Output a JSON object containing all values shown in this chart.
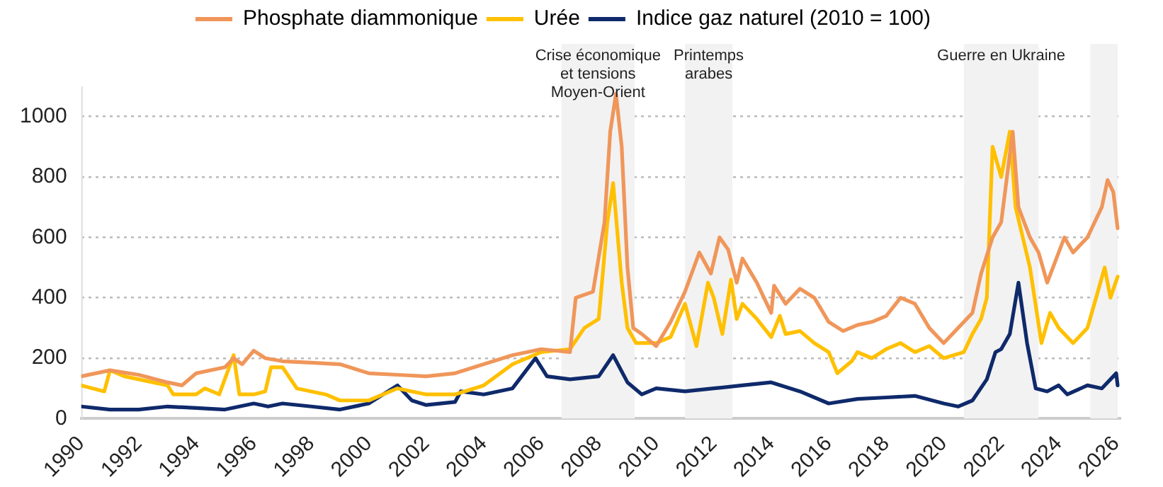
{
  "chart_data": {
    "type": "line",
    "legend": "top",
    "grid": "y",
    "marker": "none",
    "line_style": "solid",
    "xlim": [
      1990,
      2026.15
    ],
    "xticks": [
      1990,
      1992,
      1994,
      1996,
      1998,
      2000,
      2002,
      2004,
      2006,
      2008,
      2010,
      2012,
      2014,
      2016,
      2018,
      2020,
      2022,
      2024,
      2026
    ],
    "ylim": [
      0,
      1100
    ],
    "yticks": [
      0,
      200,
      400,
      600,
      800,
      1000
    ],
    "bands": [
      {
        "axis": "x",
        "from": 2006.7,
        "to": 2009.25,
        "label": "Crise économique  et tensions  Moyen-Orient",
        "color": "#f2f2f2"
      },
      {
        "axis": "x",
        "from": 2011.0,
        "to": 2012.65,
        "label": "Printemps arabes",
        "color": "#f2f2f2"
      },
      {
        "axis": "x",
        "from": 2020.7,
        "to": 2023.3,
        "label": "Guerre en Ukraine",
        "color": "#f2f2f2"
      },
      {
        "axis": "x",
        "from": 2025.1,
        "to": 2026.05,
        "label": null,
        "color": "#f2f2f2"
      }
    ],
    "series": [
      {
        "name": "Phosphate diammonique",
        "color": "#f0965a",
        "x": [
          1990,
          1991,
          1992,
          1993,
          1993.5,
          1994,
          1995,
          1995.3,
          1995.6,
          1996,
          1996.4,
          1997,
          1998,
          1999,
          2000,
          2001,
          2002,
          2003,
          2004,
          2005,
          2006,
          2007,
          2007.2,
          2007.8,
          2008.2,
          2008.4,
          2008.6,
          2008.8,
          2009,
          2009.2,
          2009.5,
          2010,
          2010.5,
          2011,
          2011.5,
          2011.9,
          2012.2,
          2012.5,
          2012.8,
          2013,
          2013.5,
          2014,
          2014.1,
          2014.5,
          2015,
          2015.5,
          2016,
          2016.5,
          2017,
          2017.5,
          2018,
          2018.5,
          2019,
          2019.5,
          2020,
          2020.5,
          2021,
          2021.3,
          2021.7,
          2022,
          2022.2,
          2022.4,
          2022.6,
          2023,
          2023.3,
          2023.6,
          2024,
          2024.2,
          2024.5,
          2025,
          2025.5,
          2025.7,
          2025.9,
          2026.05
        ],
        "values": [
          140,
          160,
          145,
          120,
          110,
          150,
          170,
          200,
          180,
          225,
          200,
          190,
          185,
          180,
          150,
          145,
          140,
          150,
          180,
          210,
          230,
          220,
          400,
          420,
          650,
          950,
          1075,
          900,
          500,
          300,
          280,
          240,
          320,
          420,
          550,
          480,
          600,
          560,
          450,
          530,
          450,
          350,
          440,
          380,
          430,
          400,
          320,
          290,
          310,
          320,
          340,
          400,
          380,
          300,
          250,
          300,
          350,
          480,
          600,
          650,
          800,
          950,
          700,
          600,
          550,
          450,
          550,
          600,
          550,
          600,
          700,
          790,
          750,
          630
        ]
      },
      {
        "name": "Urée",
        "color": "#ffc000",
        "x": [
          1990,
          1990.8,
          1991,
          1991.5,
          1992,
          1993,
          1993.2,
          1994,
          1994.3,
          1994.8,
          1995.3,
          1995.5,
          1996,
          1996.4,
          1996.6,
          1997,
          1997.5,
          1998,
          1998.5,
          1999,
          2000,
          2000.5,
          2001,
          2002,
          2003,
          2004,
          2005,
          2006,
          2007,
          2007.5,
          2008,
          2008.3,
          2008.5,
          2008.8,
          2009,
          2009.3,
          2010,
          2010.5,
          2011,
          2011.4,
          2011.8,
          2012,
          2012.3,
          2012.6,
          2012.8,
          2013,
          2013.5,
          2014,
          2014.3,
          2014.5,
          2015,
          2015.5,
          2016,
          2016.3,
          2016.8,
          2017,
          2017.5,
          2018,
          2018.5,
          2019,
          2019.5,
          2020,
          2020.7,
          2021,
          2021.3,
          2021.5,
          2021.7,
          2022,
          2022.3,
          2022.5,
          2023,
          2023.4,
          2023.7,
          2024,
          2024.5,
          2025,
          2025.3,
          2025.6,
          2025.8,
          2026.05
        ],
        "values": [
          110,
          90,
          160,
          140,
          130,
          110,
          80,
          80,
          100,
          80,
          210,
          80,
          80,
          90,
          170,
          170,
          100,
          90,
          80,
          60,
          60,
          80,
          100,
          80,
          80,
          110,
          180,
          220,
          230,
          300,
          330,
          650,
          780,
          450,
          300,
          250,
          250,
          270,
          380,
          240,
          450,
          400,
          280,
          460,
          330,
          380,
          330,
          270,
          340,
          280,
          290,
          250,
          220,
          150,
          190,
          220,
          200,
          230,
          250,
          220,
          240,
          200,
          220,
          280,
          330,
          400,
          900,
          800,
          950,
          700,
          500,
          250,
          350,
          300,
          250,
          300,
          400,
          500,
          400,
          470
        ]
      },
      {
        "name": "Indice gaz naturel (2010 = 100)",
        "color": "#0f2a6b",
        "x": [
          1990,
          1991,
          1992,
          1993,
          1994,
          1995,
          1996,
          1996.5,
          1997,
          1998,
          1999,
          2000,
          2001,
          2001.5,
          2002,
          2003,
          2003.2,
          2004,
          2005,
          2005.8,
          2006.2,
          2007,
          2008,
          2008.5,
          2009,
          2009.5,
          2010,
          2011,
          2012,
          2013,
          2014,
          2015,
          2016,
          2017,
          2018,
          2019,
          2020,
          2020.5,
          2021,
          2021.5,
          2021.8,
          2022,
          2022.3,
          2022.6,
          2022.9,
          2023.2,
          2023.6,
          2024,
          2024.3,
          2025,
          2025.5,
          2026,
          2026.05
        ],
        "values": [
          40,
          30,
          30,
          40,
          35,
          30,
          50,
          40,
          50,
          40,
          30,
          50,
          110,
          60,
          45,
          55,
          90,
          80,
          100,
          200,
          140,
          130,
          140,
          210,
          120,
          80,
          100,
          90,
          100,
          110,
          120,
          90,
          50,
          65,
          70,
          75,
          50,
          40,
          60,
          130,
          220,
          230,
          280,
          450,
          250,
          100,
          90,
          110,
          80,
          110,
          100,
          150,
          110
        ]
      }
    ]
  }
}
